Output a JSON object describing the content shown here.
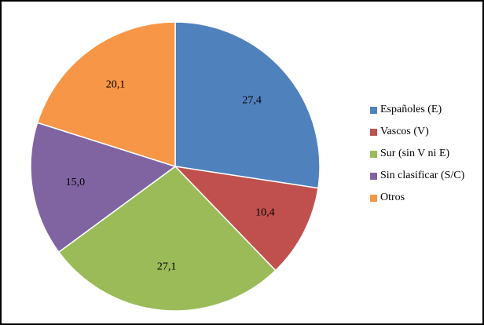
{
  "chart_data": {
    "type": "pie",
    "title": "",
    "categories": [
      "Españoles (E)",
      "Vascos (V)",
      "Sur (sin V ni E)",
      "Sin clasificar (S/C)",
      "Otros"
    ],
    "values": [
      27.4,
      10.4,
      27.1,
      15.0,
      20.1
    ],
    "value_labels": [
      "27,4",
      "10,4",
      "27,1",
      "15,0",
      "20,1"
    ],
    "colors": [
      "#4F81BD",
      "#C0504D",
      "#9BBB59",
      "#8064A2",
      "#F79646"
    ],
    "start_angle_deg": 0,
    "direction": "clockwise",
    "legend_position": "right"
  }
}
